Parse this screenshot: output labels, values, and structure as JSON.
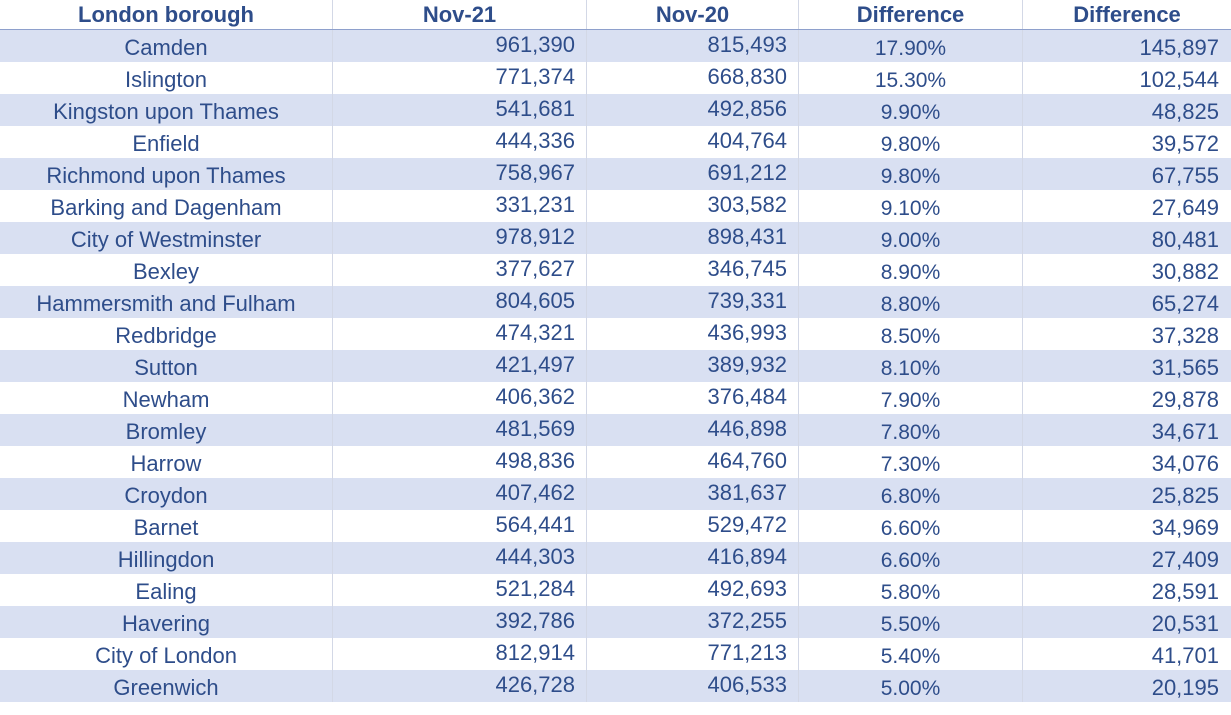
{
  "header": {
    "col1": "London borough",
    "col2": "Nov-21",
    "col3": "Nov-20",
    "col4": "Difference",
    "col5": "Difference"
  },
  "rows": [
    {
      "borough": "Camden",
      "nov21": "961,390",
      "nov20": "815,493",
      "pct": "17.90%",
      "diff": "145,897"
    },
    {
      "borough": "Islington",
      "nov21": "771,374",
      "nov20": "668,830",
      "pct": "15.30%",
      "diff": "102,544"
    },
    {
      "borough": "Kingston upon Thames",
      "nov21": "541,681",
      "nov20": "492,856",
      "pct": "9.90%",
      "diff": "48,825"
    },
    {
      "borough": "Enfield",
      "nov21": "444,336",
      "nov20": "404,764",
      "pct": "9.80%",
      "diff": "39,572"
    },
    {
      "borough": "Richmond upon Thames",
      "nov21": "758,967",
      "nov20": "691,212",
      "pct": "9.80%",
      "diff": "67,755"
    },
    {
      "borough": "Barking and Dagenham",
      "nov21": "331,231",
      "nov20": "303,582",
      "pct": "9.10%",
      "diff": "27,649"
    },
    {
      "borough": "City of Westminster",
      "nov21": "978,912",
      "nov20": "898,431",
      "pct": "9.00%",
      "diff": "80,481"
    },
    {
      "borough": "Bexley",
      "nov21": "377,627",
      "nov20": "346,745",
      "pct": "8.90%",
      "diff": "30,882"
    },
    {
      "borough": "Hammersmith and Fulham",
      "nov21": "804,605",
      "nov20": "739,331",
      "pct": "8.80%",
      "diff": "65,274"
    },
    {
      "borough": "Redbridge",
      "nov21": "474,321",
      "nov20": "436,993",
      "pct": "8.50%",
      "diff": "37,328"
    },
    {
      "borough": "Sutton",
      "nov21": "421,497",
      "nov20": "389,932",
      "pct": "8.10%",
      "diff": "31,565"
    },
    {
      "borough": "Newham",
      "nov21": "406,362",
      "nov20": "376,484",
      "pct": "7.90%",
      "diff": "29,878"
    },
    {
      "borough": "Bromley",
      "nov21": "481,569",
      "nov20": "446,898",
      "pct": "7.80%",
      "diff": "34,671"
    },
    {
      "borough": "Harrow",
      "nov21": "498,836",
      "nov20": "464,760",
      "pct": "7.30%",
      "diff": "34,076"
    },
    {
      "borough": "Croydon",
      "nov21": "407,462",
      "nov20": "381,637",
      "pct": "6.80%",
      "diff": "25,825"
    },
    {
      "borough": "Barnet",
      "nov21": "564,441",
      "nov20": "529,472",
      "pct": "6.60%",
      "diff": "34,969"
    },
    {
      "borough": "Hillingdon",
      "nov21": "444,303",
      "nov20": "416,894",
      "pct": "6.60%",
      "diff": "27,409"
    },
    {
      "borough": "Ealing",
      "nov21": "521,284",
      "nov20": "492,693",
      "pct": "5.80%",
      "diff": "28,591"
    },
    {
      "borough": "Havering",
      "nov21": "392,786",
      "nov20": "372,255",
      "pct": "5.50%",
      "diff": "20,531"
    },
    {
      "borough": "City of London",
      "nov21": "812,914",
      "nov20": "771,213",
      "pct": "5.40%",
      "diff": "41,701"
    },
    {
      "borough": "Greenwich",
      "nov21": "426,728",
      "nov20": "406,533",
      "pct": "5.00%",
      "diff": "20,195"
    }
  ]
}
